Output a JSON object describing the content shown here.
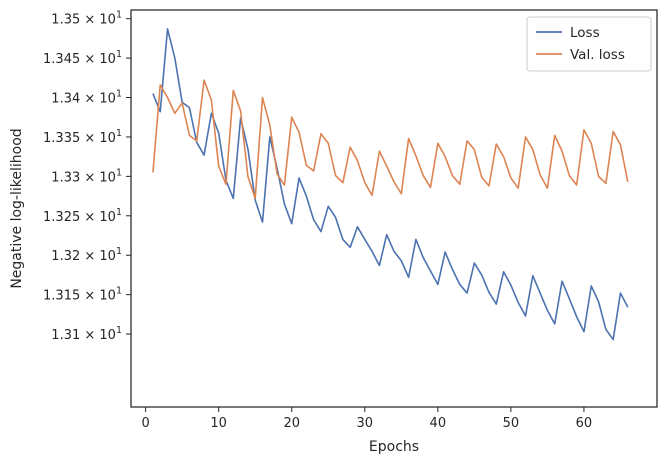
{
  "colors": {
    "loss": "#4c72b0",
    "val_loss": "#dd8452",
    "axis": "#262626",
    "legend_border": "#cccccc"
  },
  "chart_data": {
    "type": "line",
    "title": "",
    "xlabel": "Epochs",
    "ylabel": "Negative log-likelihood",
    "xlim": [
      -2,
      70
    ],
    "ylim": [
      13.0075,
      13.511
    ],
    "x_ticks": [
      0,
      10,
      20,
      30,
      40,
      50,
      60
    ],
    "y_ticks": [
      {
        "value": 13.1,
        "mantissa": "1.31",
        "exp": "1"
      },
      {
        "value": 13.15,
        "mantissa": "1.315",
        "exp": "1"
      },
      {
        "value": 13.2,
        "mantissa": "1.32",
        "exp": "1"
      },
      {
        "value": 13.25,
        "mantissa": "1.325",
        "exp": "1"
      },
      {
        "value": 13.3,
        "mantissa": "1.33",
        "exp": "1"
      },
      {
        "value": 13.35,
        "mantissa": "1.335",
        "exp": "1"
      },
      {
        "value": 13.4,
        "mantissa": "1.34",
        "exp": "1"
      },
      {
        "value": 13.45,
        "mantissa": "1.345",
        "exp": "1"
      },
      {
        "value": 13.5,
        "mantissa": "1.35",
        "exp": "1"
      }
    ],
    "times_symbol": "×",
    "tick_base": "10",
    "grid": false,
    "legend_position": "top-right",
    "x": [
      1,
      2,
      3,
      4,
      5,
      6,
      7,
      8,
      9,
      10,
      11,
      12,
      13,
      14,
      15,
      16,
      17,
      18,
      19,
      20,
      21,
      22,
      23,
      24,
      25,
      26,
      27,
      28,
      29,
      30,
      31,
      32,
      33,
      34,
      35,
      36,
      37,
      38,
      39,
      40,
      41,
      42,
      43,
      44,
      45,
      46,
      47,
      48,
      49,
      50,
      51,
      52,
      53,
      54,
      55,
      56,
      57,
      58,
      59,
      60,
      61,
      62,
      63,
      64,
      65,
      66
    ],
    "series": [
      {
        "name": "Loss",
        "values": [
          13.405,
          13.382,
          13.487,
          13.45,
          13.394,
          13.387,
          13.343,
          13.327,
          13.38,
          13.355,
          13.295,
          13.272,
          13.374,
          13.335,
          13.27,
          13.242,
          13.35,
          13.31,
          13.265,
          13.24,
          13.298,
          13.275,
          13.245,
          13.23,
          13.262,
          13.248,
          13.22,
          13.21,
          13.236,
          13.22,
          13.205,
          13.187,
          13.226,
          13.205,
          13.193,
          13.172,
          13.22,
          13.197,
          13.18,
          13.163,
          13.204,
          13.182,
          13.163,
          13.152,
          13.19,
          13.175,
          13.153,
          13.138,
          13.179,
          13.162,
          13.14,
          13.123,
          13.174,
          13.152,
          13.13,
          13.113,
          13.167,
          13.145,
          13.122,
          13.103,
          13.161,
          13.141,
          13.106,
          13.093,
          13.152,
          13.134
        ]
      },
      {
        "name": "Val. loss",
        "values": [
          13.305,
          13.416,
          13.4,
          13.38,
          13.393,
          13.352,
          13.345,
          13.422,
          13.397,
          13.313,
          13.29,
          13.409,
          13.383,
          13.3,
          13.272,
          13.4,
          13.365,
          13.303,
          13.289,
          13.375,
          13.356,
          13.314,
          13.307,
          13.354,
          13.342,
          13.301,
          13.292,
          13.337,
          13.32,
          13.292,
          13.276,
          13.332,
          13.313,
          13.293,
          13.278,
          13.348,
          13.326,
          13.301,
          13.286,
          13.342,
          13.325,
          13.301,
          13.29,
          13.345,
          13.334,
          13.299,
          13.288,
          13.341,
          13.325,
          13.298,
          13.285,
          13.35,
          13.334,
          13.302,
          13.285,
          13.352,
          13.332,
          13.301,
          13.289,
          13.359,
          13.342,
          13.3,
          13.291,
          13.357,
          13.34,
          13.293
        ]
      }
    ]
  }
}
